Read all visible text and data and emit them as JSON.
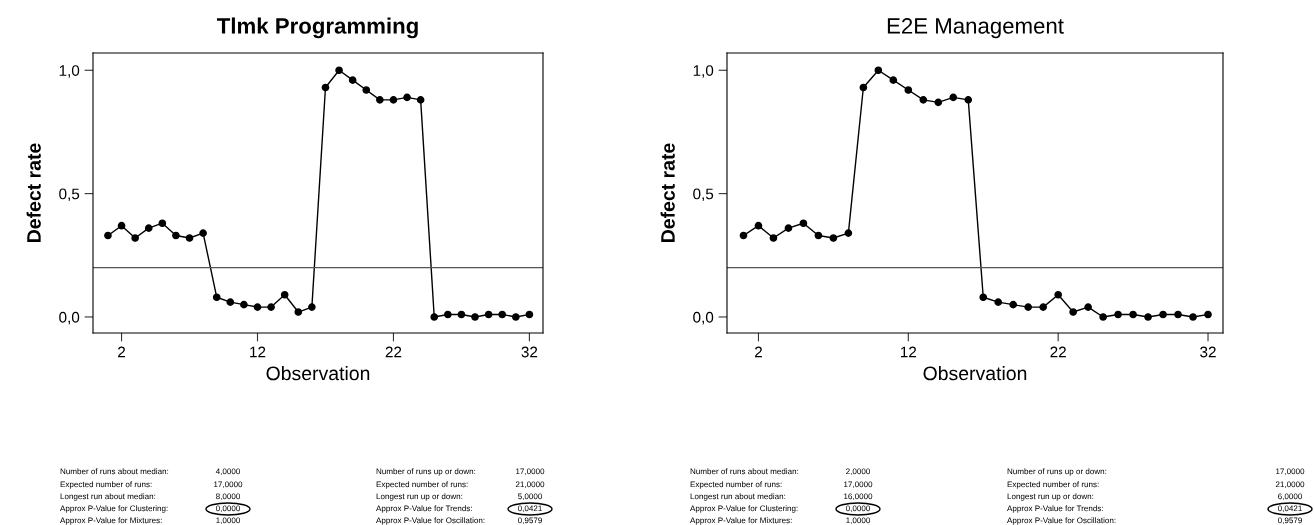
{
  "chart_data": [
    {
      "type": "line",
      "title": "Tlmk Programming",
      "xlabel": "Observation",
      "ylabel": "Defect rate",
      "x": [
        1,
        2,
        3,
        4,
        5,
        6,
        7,
        8,
        9,
        10,
        11,
        12,
        13,
        14,
        15,
        16,
        17,
        18,
        19,
        20,
        21,
        22,
        23,
        24,
        25,
        26,
        27,
        28,
        29,
        30,
        31,
        32
      ],
      "series": [
        {
          "color": "#000000",
          "values": [
            0.33,
            0.37,
            0.32,
            0.36,
            0.38,
            0.33,
            0.32,
            0.34,
            0.08,
            0.06,
            0.05,
            0.04,
            0.04,
            0.09,
            0.02,
            0.04,
            0.93,
            1.0,
            0.96,
            0.92,
            0.88,
            0.88,
            0.89,
            0.88,
            0.0,
            0.01,
            0.01,
            0.0,
            0.01,
            0.01,
            0.0,
            0.01
          ]
        }
      ],
      "xlim": [
        -0.1,
        33
      ],
      "xticks": [
        2,
        12,
        22,
        32
      ],
      "ylim": [
        -0.065,
        1.07
      ],
      "yticks": [
        {
          "value": 0,
          "label": "0,0"
        },
        {
          "value": 0.5,
          "label": "0,5"
        },
        {
          "value": 1,
          "label": "1,0"
        }
      ],
      "ref_lines": [
        {
          "axis": "y",
          "value": 0.2,
          "color": "#555555"
        }
      ],
      "marker": "circle",
      "line_style": "solid",
      "grid": false,
      "legend": false,
      "annotations": [
        "Number of runs about median:",
        "4,0000",
        "Expected number of runs:",
        "17,0000",
        "Longest run about median:",
        "8,0000",
        "Approx P-Value for Clustering:",
        "0,0000",
        "Approx P-Value for Mixtures:",
        "1,0000",
        "Number of runs up or down:",
        "17,0000",
        "Expected number of runs:",
        "21,0000",
        "Longest run up or down:",
        "5,0000",
        "Approx P-Value for Trends:",
        "0,0421",
        "Approx P-Value for Oscillation:",
        "0,9579"
      ]
    },
    {
      "type": "line",
      "title": "E2E Management",
      "xlabel": "Observation",
      "ylabel": "Defect rate",
      "x": [
        1,
        2,
        3,
        4,
        5,
        6,
        7,
        8,
        9,
        10,
        11,
        12,
        13,
        14,
        15,
        16,
        17,
        18,
        19,
        20,
        21,
        22,
        23,
        24,
        25,
        26,
        27,
        28,
        29,
        30,
        31,
        32
      ],
      "series": [
        {
          "color": "#000000",
          "values": [
            0.33,
            0.37,
            0.32,
            0.36,
            0.38,
            0.33,
            0.32,
            0.34,
            0.93,
            1.0,
            0.96,
            0.92,
            0.88,
            0.87,
            0.89,
            0.88,
            0.08,
            0.06,
            0.05,
            0.04,
            0.04,
            0.09,
            0.02,
            0.04,
            0.0,
            0.01,
            0.01,
            0.0,
            0.01,
            0.01,
            0.0,
            0.01
          ]
        }
      ],
      "xlim": [
        -0.1,
        33
      ],
      "xticks": [
        2,
        12,
        22,
        32
      ],
      "ylim": [
        -0.065,
        1.07
      ],
      "yticks": [
        {
          "value": 0,
          "label": "0,0"
        },
        {
          "value": 0.5,
          "label": "0,5"
        },
        {
          "value": 1,
          "label": "1,0"
        }
      ],
      "ref_lines": [
        {
          "axis": "y",
          "value": 0.2,
          "color": "#555555"
        }
      ],
      "marker": "circle",
      "line_style": "solid",
      "grid": false,
      "legend": false,
      "annotations": [
        "Number of runs about median:",
        "2,0000",
        "Expected number of runs:",
        "17,0000",
        "Longest run about median:",
        "16,0000",
        "Approx P-Value for Clustering:",
        "0,0000",
        "Approx P-Value for Mixtures:",
        "1,0000",
        "Number of runs up or down:",
        "17,0000",
        "Expected number of runs:",
        "21,0000",
        "Longest run up or down:",
        "6,0000",
        "Approx P-Value for Trends:",
        "0,0421",
        "Approx P-Value for Oscillation:",
        "0,9579"
      ]
    }
  ]
}
